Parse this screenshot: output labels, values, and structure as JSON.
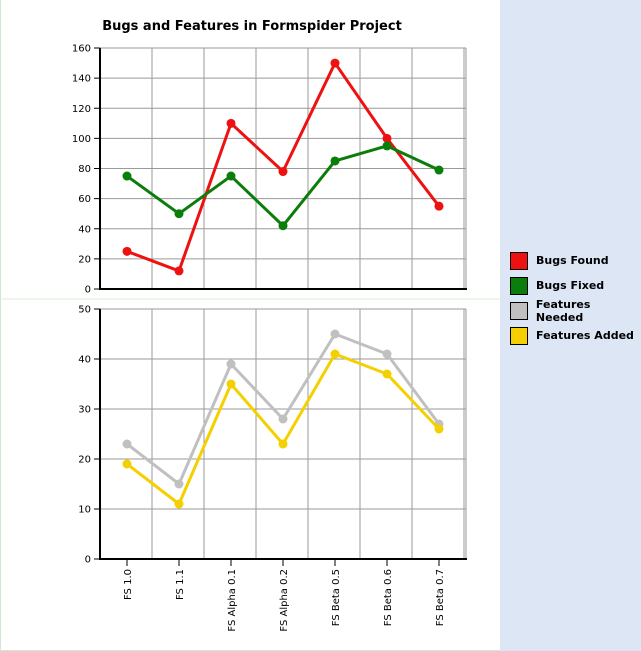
{
  "chart_data": [
    {
      "type": "line",
      "title": "Bugs and Features in Formspider Project",
      "categories": [
        "FS 1.0",
        "FS 1.1",
        "FS Alpha 0.1",
        "FS Alpha 0.2",
        "FS Beta 0.5",
        "FS Beta 0.6",
        "FS Beta 0.7"
      ],
      "ylim": [
        0,
        160
      ],
      "yticks": [
        0,
        20,
        40,
        60,
        80,
        100,
        120,
        140,
        160
      ],
      "grid": true,
      "series": [
        {
          "name": "Bugs Found",
          "color": "#ee1111",
          "values": [
            25,
            12,
            110,
            78,
            150,
            100,
            55
          ]
        },
        {
          "name": "Bugs Fixed",
          "color": "#0b7d0b",
          "values": [
            75,
            50,
            75,
            42,
            85,
            95,
            79
          ]
        }
      ]
    },
    {
      "type": "line",
      "categories": [
        "FS 1.0",
        "FS 1.1",
        "FS Alpha 0.1",
        "FS Alpha 0.2",
        "FS Beta 0.5",
        "FS Beta 0.6",
        "FS Beta 0.7"
      ],
      "ylim": [
        0,
        50
      ],
      "yticks": [
        0,
        10,
        20,
        30,
        40,
        50
      ],
      "grid": true,
      "series": [
        {
          "name": "Features Needed",
          "color": "#c0c0c0",
          "values": [
            23,
            15,
            39,
            28,
            45,
            41,
            27
          ]
        },
        {
          "name": "Features Added",
          "color": "#f5d000",
          "values": [
            19,
            11,
            35,
            23,
            41,
            37,
            26
          ]
        }
      ]
    }
  ],
  "legend": {
    "placement": "right",
    "items": [
      {
        "label": "Bugs Found",
        "color": "#ee1111"
      },
      {
        "label": "Bugs Fixed",
        "color": "#0b7d0b"
      },
      {
        "label": "Features Needed",
        "color": "#c0c0c0"
      },
      {
        "label": "Features Added",
        "color": "#f5d000"
      }
    ]
  }
}
